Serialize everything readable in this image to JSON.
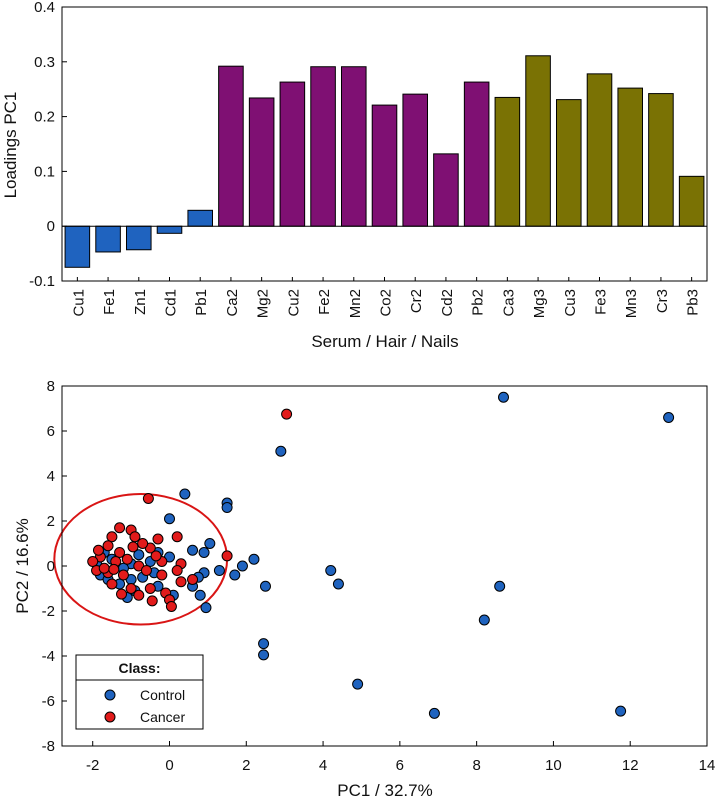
{
  "colors": {
    "serum": "#1f63bf",
    "hair": "#7f1073",
    "nails": "#7a7204",
    "control": "#1f63bf",
    "cancer": "#e21b1b",
    "ellipse": "#d91515"
  },
  "chart_data": [
    {
      "type": "bar",
      "categories": [
        "Cu1",
        "Fe1",
        "Zn1",
        "Cd1",
        "Pb1",
        "Ca2",
        "Mg2",
        "Cu2",
        "Fe2",
        "Mn2",
        "Co2",
        "Cr2",
        "Cd2",
        "Pb2",
        "Ca3",
        "Mg3",
        "Cu3",
        "Fe3",
        "Mn3",
        "Cr3",
        "Pb3"
      ],
      "values": [
        -0.075,
        -0.047,
        -0.043,
        -0.013,
        0.029,
        0.292,
        0.234,
        0.263,
        0.291,
        0.291,
        0.221,
        0.241,
        0.132,
        0.263,
        0.235,
        0.311,
        0.231,
        0.278,
        0.252,
        0.242,
        0.091
      ],
      "groups": [
        "serum",
        "serum",
        "serum",
        "serum",
        "serum",
        "hair",
        "hair",
        "hair",
        "hair",
        "hair",
        "hair",
        "hair",
        "hair",
        "hair",
        "nails",
        "nails",
        "nails",
        "nails",
        "nails",
        "nails",
        "nails"
      ],
      "xlabel": "Serum / Hair / Nails",
      "ylabel": "Loadings PC1",
      "ylim": [
        -0.1,
        0.4
      ],
      "yticks": [
        -0.1,
        0,
        0.1,
        0.2,
        0.3,
        0.4
      ],
      "ytick_labels": [
        "-0.1",
        "0",
        "0.1",
        "0.2",
        "0.3",
        "0.4"
      ],
      "grid": false
    },
    {
      "type": "scatter",
      "xlabel": "PC1 / 32.7%",
      "ylabel": "PC2 / 16.6%",
      "xlim": [
        -2.8,
        14
      ],
      "ylim": [
        -8,
        8
      ],
      "xticks": [
        -2,
        0,
        2,
        4,
        6,
        8,
        10,
        12,
        14
      ],
      "xtick_labels": [
        "-2",
        "0",
        "2",
        "4",
        "6",
        "8",
        "10",
        "12",
        "14"
      ],
      "yticks": [
        -8,
        -6,
        -4,
        -2,
        0,
        2,
        4,
        6,
        8
      ],
      "ytick_labels": [
        "-8",
        "-6",
        "-4",
        "-2",
        "0",
        "2",
        "4",
        "6",
        "8"
      ],
      "grid": false,
      "legend": {
        "title": "Class:",
        "position": "bottom-left"
      },
      "ellipse": {
        "cx": -0.75,
        "cy": 0.3,
        "rx": 2.25,
        "ry": 2.9
      },
      "series": [
        {
          "name": "Control",
          "points": [
            [
              8.7,
              7.5
            ],
            [
              13.0,
              6.6
            ],
            [
              2.9,
              5.1
            ],
            [
              0.4,
              3.2
            ],
            [
              1.5,
              2.8
            ],
            [
              1.5,
              2.6
            ],
            [
              0.0,
              2.1
            ],
            [
              1.05,
              1.0
            ],
            [
              0.6,
              0.7
            ],
            [
              0.9,
              0.6
            ],
            [
              2.2,
              0.3
            ],
            [
              1.9,
              0.0
            ],
            [
              0.9,
              -0.3
            ],
            [
              1.3,
              -0.2
            ],
            [
              1.7,
              -0.4
            ],
            [
              0.75,
              -0.5
            ],
            [
              2.5,
              -0.9
            ],
            [
              0.6,
              -0.9
            ],
            [
              0.8,
              -1.3
            ],
            [
              0.95,
              -1.85
            ],
            [
              4.2,
              -0.2
            ],
            [
              4.4,
              -0.8
            ],
            [
              8.6,
              -0.9
            ],
            [
              8.2,
              -2.4
            ],
            [
              2.45,
              -3.45
            ],
            [
              2.45,
              -3.95
            ],
            [
              4.9,
              -5.25
            ],
            [
              6.9,
              -6.55
            ],
            [
              11.75,
              -6.45
            ],
            [
              -0.3,
              0.6
            ],
            [
              0.0,
              0.4
            ],
            [
              -0.5,
              0.2
            ],
            [
              -0.8,
              0.5
            ],
            [
              -1.0,
              0.1
            ],
            [
              -0.4,
              -0.3
            ],
            [
              -0.7,
              -0.5
            ],
            [
              -1.2,
              -0.1
            ],
            [
              -1.5,
              0.3
            ],
            [
              -1.9,
              0.1
            ],
            [
              -1.8,
              -0.4
            ],
            [
              -1.6,
              -0.6
            ],
            [
              -1.3,
              -0.8
            ],
            [
              -1.0,
              -0.6
            ],
            [
              -0.9,
              -1.1
            ],
            [
              -0.3,
              -0.9
            ],
            [
              0.1,
              -1.3
            ],
            [
              -1.7,
              0.6
            ],
            [
              -1.1,
              -1.4
            ]
          ]
        },
        {
          "name": "Cancer",
          "points": [
            [
              3.05,
              6.75
            ],
            [
              -0.55,
              3.0
            ],
            [
              1.5,
              0.45
            ],
            [
              -1.3,
              1.7
            ],
            [
              -1.5,
              1.3
            ],
            [
              -1.0,
              1.6
            ],
            [
              -0.9,
              1.3
            ],
            [
              -1.6,
              0.9
            ],
            [
              -0.3,
              1.2
            ],
            [
              0.2,
              1.3
            ],
            [
              -0.5,
              0.8
            ],
            [
              -1.3,
              0.6
            ],
            [
              -1.8,
              0.4
            ],
            [
              -2.0,
              0.2
            ],
            [
              -1.4,
              0.2
            ],
            [
              -0.8,
              0.0
            ],
            [
              -1.9,
              -0.2
            ],
            [
              -1.6,
              -0.3
            ],
            [
              -1.2,
              -0.4
            ],
            [
              -0.6,
              -0.2
            ],
            [
              -0.2,
              -0.4
            ],
            [
              0.3,
              -0.7
            ],
            [
              -0.1,
              -1.2
            ],
            [
              0.0,
              -1.5
            ],
            [
              -0.8,
              -1.3
            ],
            [
              -0.5,
              -1.0
            ],
            [
              -1.5,
              -0.8
            ],
            [
              -1.0,
              -1.0
            ],
            [
              0.05,
              -1.8
            ],
            [
              0.3,
              0.1
            ],
            [
              -0.2,
              0.2
            ],
            [
              -1.1,
              0.3
            ],
            [
              -0.7,
              1.0
            ],
            [
              -1.7,
              -0.1
            ],
            [
              -1.25,
              -1.25
            ],
            [
              -0.45,
              -1.55
            ],
            [
              0.2,
              -0.2
            ],
            [
              -0.35,
              0.45
            ],
            [
              -1.45,
              -0.15
            ],
            [
              -1.85,
              0.7
            ],
            [
              -0.95,
              0.85
            ],
            [
              0.6,
              -0.6
            ]
          ]
        }
      ]
    }
  ]
}
